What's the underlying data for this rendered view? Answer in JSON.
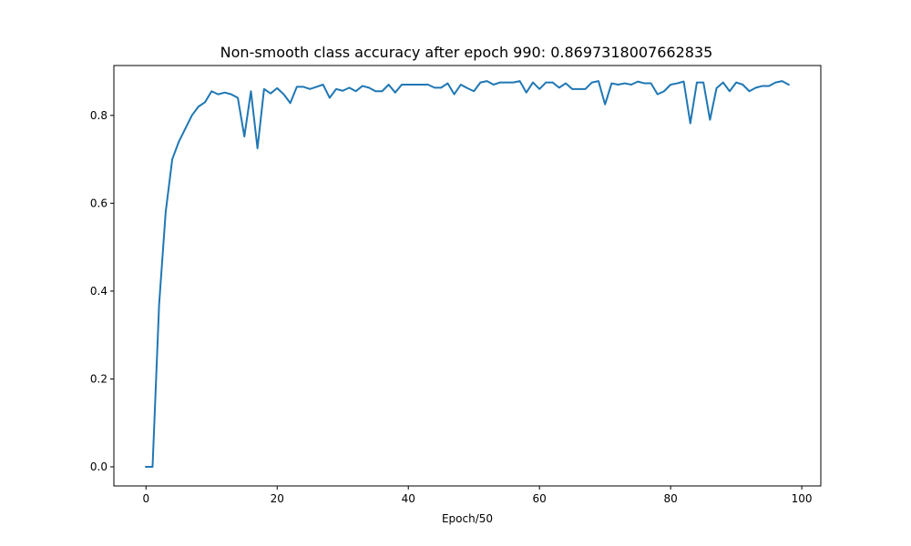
{
  "chart_data": {
    "type": "line",
    "title": "Non-smooth class accuracy after epoch 990: 0.8697318007662835",
    "xlabel": "Epoch/50",
    "ylabel": "",
    "xlim": [
      -4.9,
      102.9
    ],
    "ylim": [
      -0.0435,
      0.9135
    ],
    "x_ticks": [
      0,
      20,
      40,
      60,
      80,
      100
    ],
    "y_ticks": [
      0.0,
      0.2,
      0.4,
      0.6,
      0.8
    ],
    "grid": false,
    "line_color": "#1f77b4",
    "series": [
      {
        "x": [
          0,
          1,
          2,
          3,
          4,
          5,
          6,
          7,
          8,
          9,
          10,
          11,
          12,
          13,
          14,
          15,
          16,
          17,
          18,
          19,
          20,
          21,
          22,
          23,
          24,
          25,
          26,
          27,
          28,
          29,
          30,
          31,
          32,
          33,
          34,
          35,
          36,
          37,
          38,
          39,
          40,
          41,
          42,
          43,
          44,
          45,
          46,
          47,
          48,
          49,
          50,
          51,
          52,
          53,
          54,
          55,
          56,
          57,
          58,
          59,
          60,
          61,
          62,
          63,
          64,
          65,
          66,
          67,
          68,
          69,
          70,
          71,
          72,
          73,
          74,
          75,
          76,
          77,
          78,
          79,
          80,
          81,
          82,
          83,
          84,
          85,
          86,
          87,
          88,
          89,
          90,
          91,
          92,
          93,
          94,
          95,
          96,
          97,
          98
        ],
        "values": [
          0.0,
          0.0,
          0.37,
          0.58,
          0.7,
          0.74,
          0.77,
          0.8,
          0.82,
          0.83,
          0.855,
          0.848,
          0.852,
          0.848,
          0.84,
          0.752,
          0.855,
          0.725,
          0.86,
          0.85,
          0.862,
          0.848,
          0.828,
          0.865,
          0.865,
          0.86,
          0.865,
          0.87,
          0.84,
          0.86,
          0.856,
          0.863,
          0.855,
          0.867,
          0.863,
          0.855,
          0.855,
          0.87,
          0.852,
          0.87,
          0.87,
          0.87,
          0.87,
          0.87,
          0.863,
          0.863,
          0.873,
          0.848,
          0.87,
          0.862,
          0.855,
          0.875,
          0.878,
          0.87,
          0.875,
          0.875,
          0.875,
          0.878,
          0.852,
          0.875,
          0.86,
          0.875,
          0.875,
          0.863,
          0.873,
          0.86,
          0.86,
          0.86,
          0.875,
          0.878,
          0.825,
          0.873,
          0.87,
          0.873,
          0.87,
          0.877,
          0.873,
          0.873,
          0.848,
          0.855,
          0.87,
          0.873,
          0.877,
          0.782,
          0.875,
          0.875,
          0.79,
          0.862,
          0.875,
          0.855,
          0.875,
          0.87,
          0.855,
          0.863,
          0.867,
          0.867,
          0.875,
          0.878,
          0.87
        ]
      }
    ]
  }
}
